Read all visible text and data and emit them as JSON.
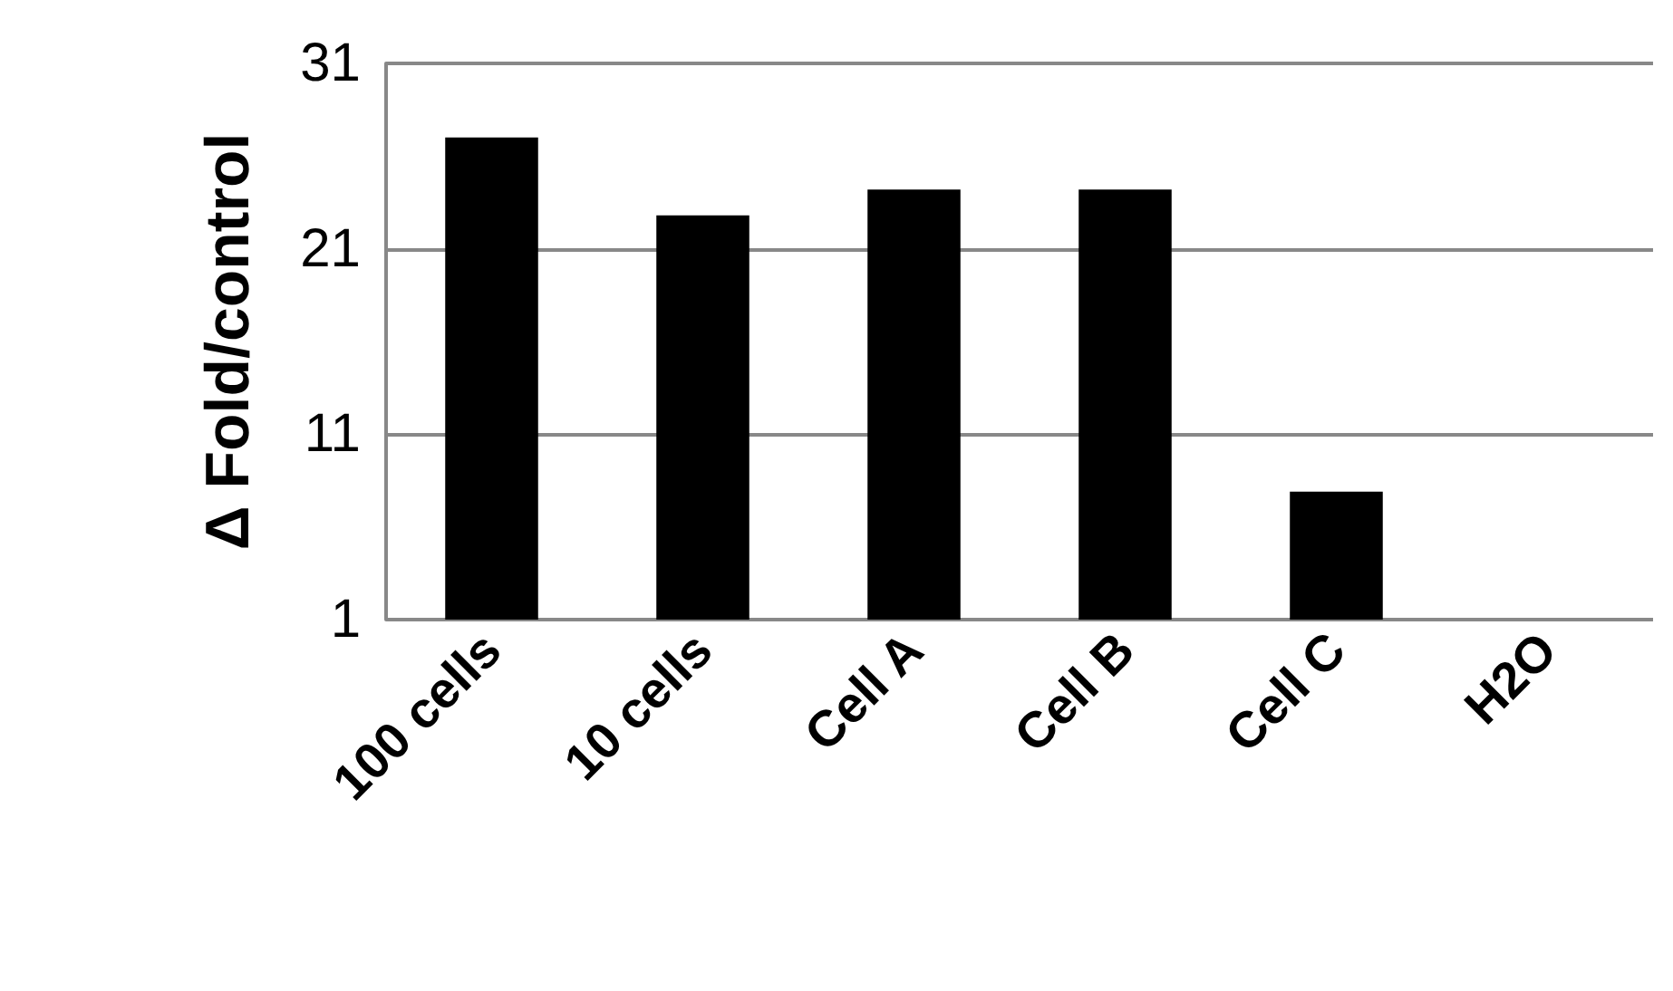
{
  "chart_data": {
    "type": "bar",
    "ylabel": "Δ Fold/control",
    "categories": [
      "100 cells",
      "10 cells",
      "Cell A",
      "Cell B",
      "Cell C",
      "H2O"
    ],
    "values": [
      27.0,
      22.8,
      24.2,
      24.2,
      7.9,
      1
    ],
    "color": "#000000",
    "ylim": [
      1,
      31
    ],
    "yticks": [
      1,
      11,
      21,
      31
    ],
    "grid": "y"
  }
}
